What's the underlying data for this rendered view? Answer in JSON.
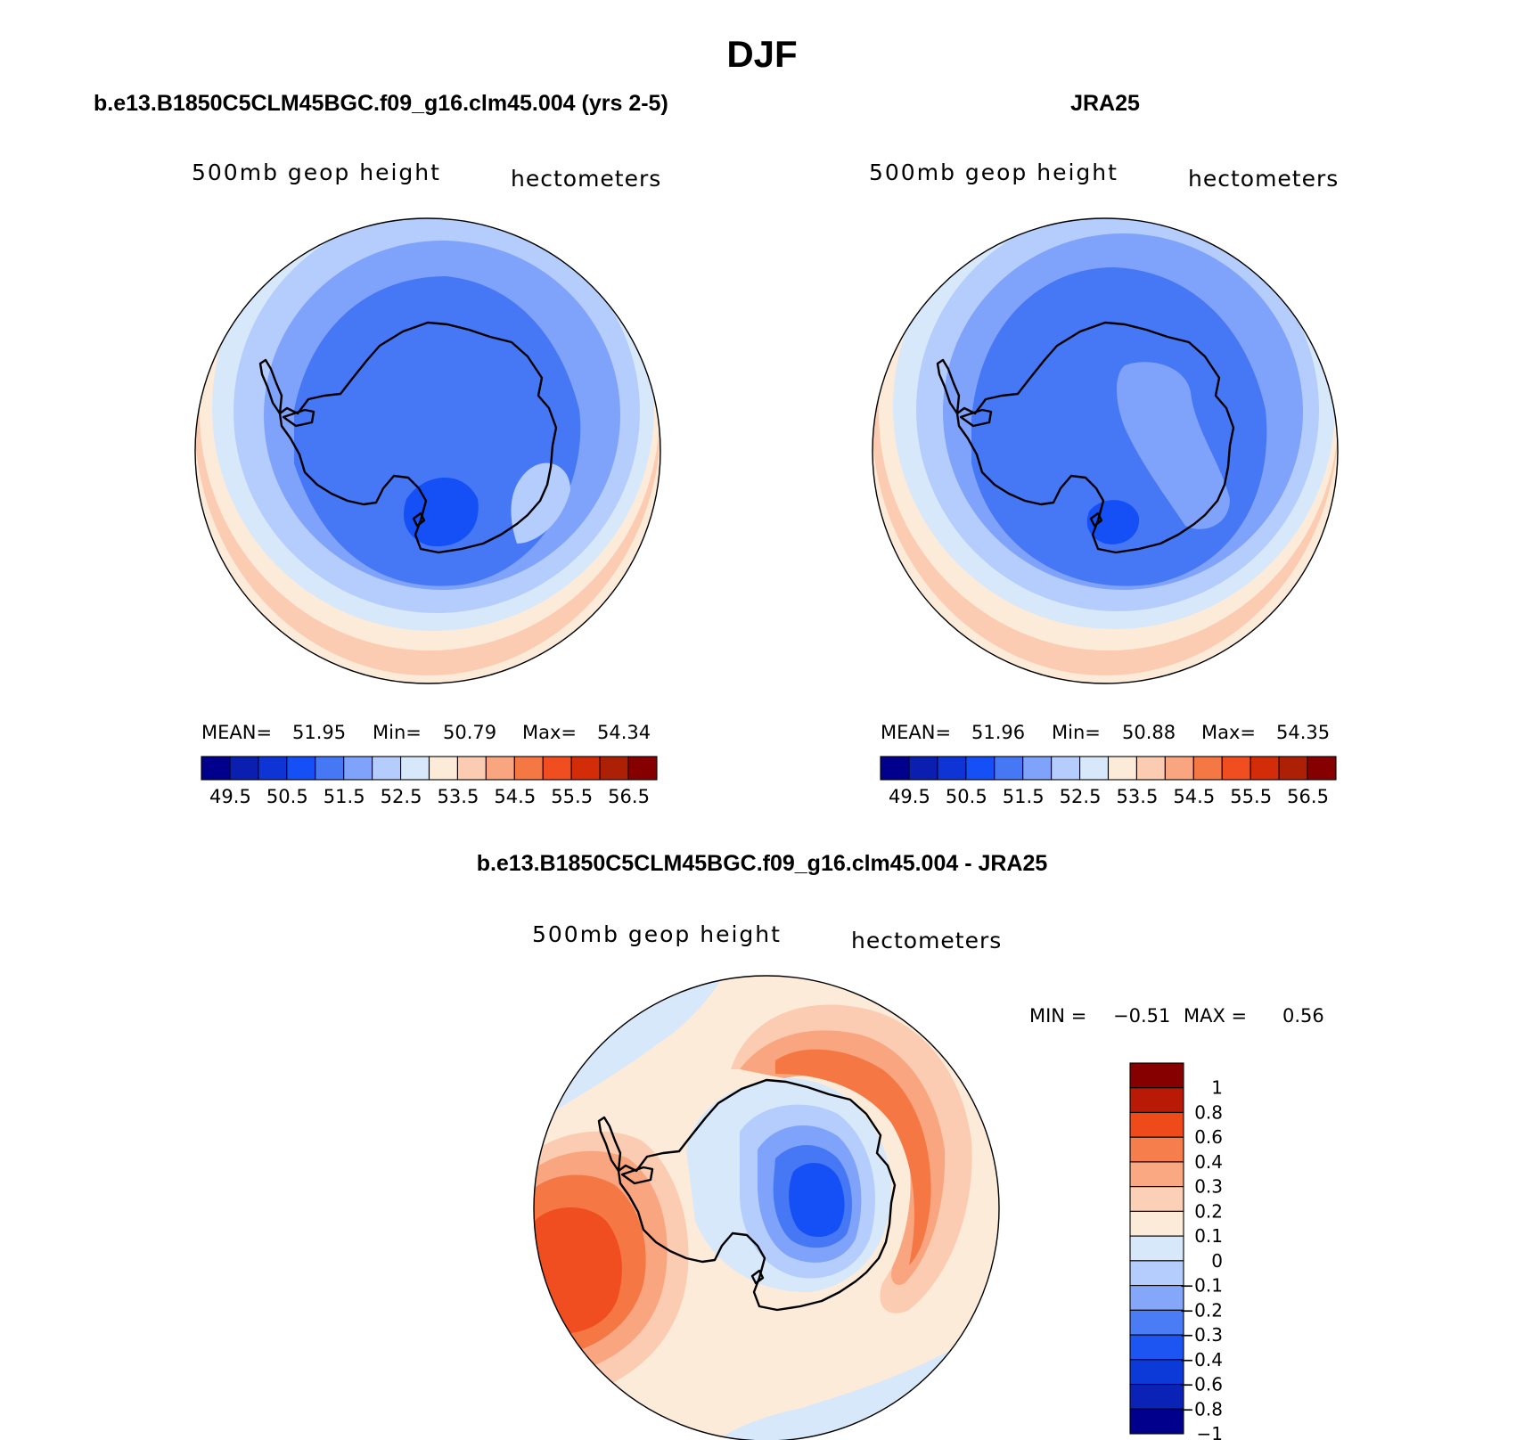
{
  "figure": {
    "title": "DJF"
  },
  "panels": [
    {
      "id": "model",
      "case_title": "b.e13.B1850C5CLM45BGC.f09_g16.clm45.004 (yrs 2-5)",
      "variable": "500mb geop height",
      "units": "hectometers",
      "stats": {
        "mean_label": "MEAN=",
        "mean": "51.95",
        "min_label": "Min=",
        "min": "50.79",
        "max_label": "Max=",
        "max": "54.34"
      }
    },
    {
      "id": "obs",
      "case_title": "JRA25",
      "variable": "500mb geop height",
      "units": "hectometers",
      "stats": {
        "mean_label": "MEAN=",
        "mean": "51.96",
        "min_label": "Min=",
        "min": "50.88",
        "max_label": "Max=",
        "max": "54.35"
      }
    },
    {
      "id": "diff",
      "case_title": "b.e13.B1850C5CLM45BGC.f09_g16.clm45.004 - JRA25",
      "variable": "500mb geop height",
      "units": "hectometers",
      "stats": {
        "min_label": "MIN =",
        "min": "−0.51",
        "max_label": "MAX =",
        "max": "0.56"
      }
    }
  ],
  "colorbars": {
    "absolute": {
      "colors": [
        "#00008c",
        "#0a1eaf",
        "#0e34d5",
        "#1450f5",
        "#4678f6",
        "#7fa2fa",
        "#b5cdfc",
        "#d7e8fb",
        "#fdebd9",
        "#fcccb2",
        "#f9a57f",
        "#f47744",
        "#f04d20",
        "#d22c08",
        "#ac2005",
        "#860000"
      ],
      "tick_labels": [
        "49.5",
        "50.5",
        "51.5",
        "52.5",
        "53.5",
        "54.5",
        "55.5",
        "56.5"
      ]
    },
    "difference": {
      "colors_top_to_bottom": [
        "#860000",
        "#b81a06",
        "#ee4a1a",
        "#f67e4c",
        "#f9a882",
        "#fbd0b6",
        "#fdebd9",
        "#d7e8fb",
        "#b5cdfc",
        "#84a7fa",
        "#4a7cf6",
        "#1d55f2",
        "#0b3ad8",
        "#0a22b6",
        "#00008c"
      ],
      "tick_labels": [
        "1",
        "0.8",
        "0.6",
        "0.4",
        "0.3",
        "0.2",
        "0.1",
        "0",
        "−0.1",
        "−0.2",
        "−0.3",
        "−0.4",
        "−0.6",
        "−0.8",
        "−1"
      ]
    }
  },
  "icons": {
    "map_projection": "south-polar-stereographic",
    "continent": "antarctica-coastline"
  }
}
